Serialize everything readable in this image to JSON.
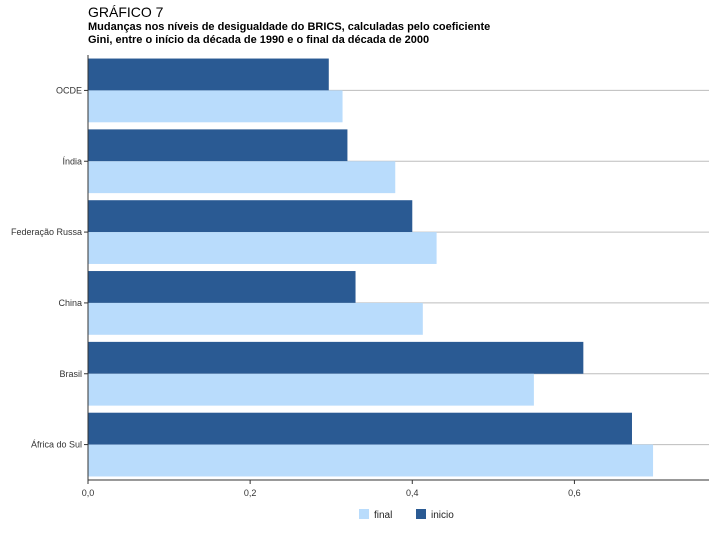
{
  "header": {
    "label": "GRÁFICO 7",
    "subtitle_line1": "Mudanças nos níveis de desigualdade do BRICS, calculadas pelo coeficiente",
    "subtitle_line2": "Gini, entre o início da década de 1990 e o final da década de 2000"
  },
  "chart_data": {
    "type": "bar",
    "orientation": "horizontal",
    "categories": [
      "OCDE",
      "Índia",
      "Federação Russa",
      "China",
      "Brasil",
      "África do Sul"
    ],
    "series": [
      {
        "name": "inicio",
        "values": [
          0.297,
          0.32,
          0.4,
          0.33,
          0.611,
          0.671
        ]
      },
      {
        "name": "final",
        "values": [
          0.314,
          0.379,
          0.43,
          0.413,
          0.55,
          0.697
        ]
      }
    ],
    "xlim": [
      0,
      0.766
    ],
    "x_ticks": [
      0,
      0.2,
      0.4,
      0.6
    ],
    "x_tick_labels": [
      "0,0",
      "0,2",
      "0,4",
      "0,6"
    ],
    "legend": [
      {
        "name": "final",
        "color": "#b9dcfc"
      },
      {
        "name": "inicio",
        "color": "#2a5a93"
      }
    ],
    "legend_position": "bottom",
    "grid": "horizontal",
    "colors": {
      "inicio": "#2a5a93",
      "final": "#b9dcfc"
    }
  }
}
